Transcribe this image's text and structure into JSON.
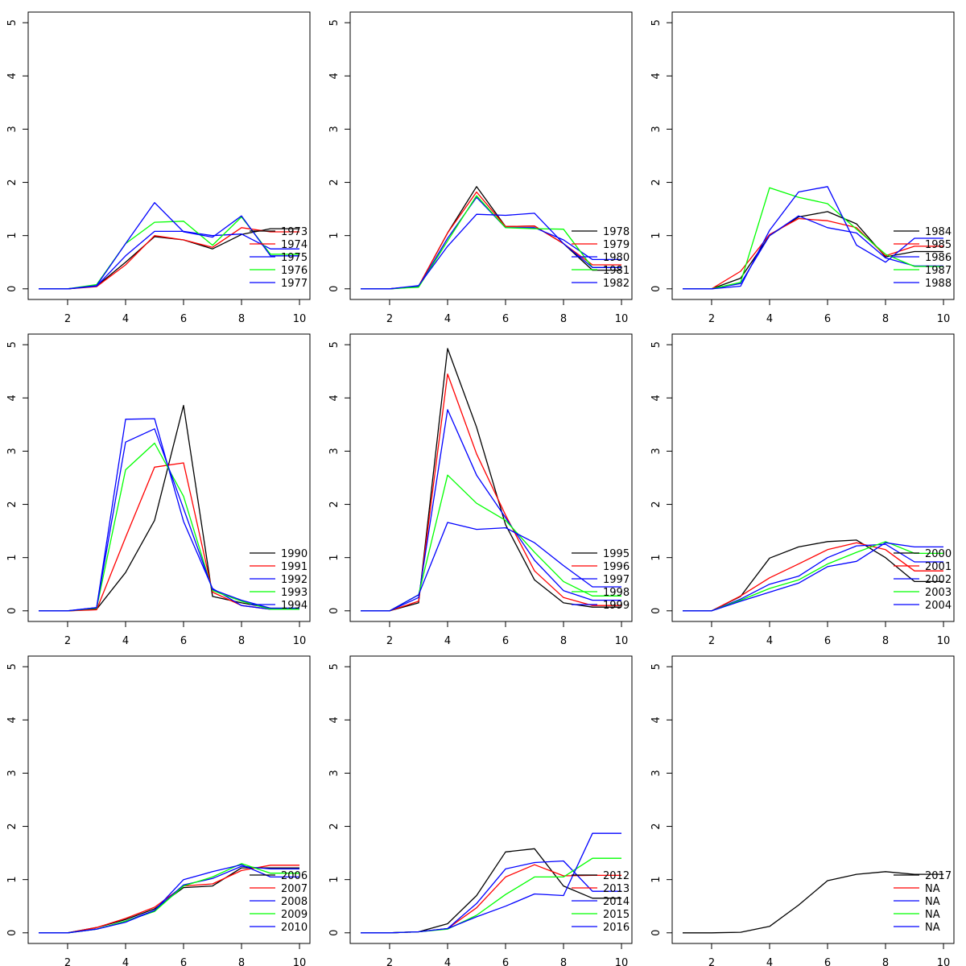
{
  "chart_data": [
    {
      "type": "line",
      "xlim": [
        1,
        10
      ],
      "ylim": [
        0,
        5
      ],
      "xticks": [
        2,
        4,
        6,
        8,
        10
      ],
      "yticks": [
        0,
        1,
        2,
        3,
        4,
        5
      ],
      "legend_position": "bottom-right",
      "series": [
        {
          "name": "1973",
          "color": "#000000",
          "values": [
            0,
            0,
            0.05,
            0.5,
            0.98,
            0.92,
            0.75,
            1.02,
            1.13,
            1.13
          ]
        },
        {
          "name": "1974",
          "color": "#ff0000",
          "values": [
            0,
            0,
            0.04,
            0.45,
            1.0,
            0.92,
            0.78,
            1.15,
            1.07,
            1.07
          ]
        },
        {
          "name": "1975",
          "color": "#0000ff",
          "values": [
            0,
            0,
            0.05,
            0.62,
            1.08,
            1.08,
            1.0,
            1.03,
            0.75,
            0.75
          ]
        },
        {
          "name": "1976",
          "color": "#00ff00",
          "values": [
            0,
            0,
            0.08,
            0.85,
            1.25,
            1.27,
            0.82,
            1.35,
            0.65,
            0.65
          ]
        },
        {
          "name": "1977",
          "color": "#0000ff",
          "values": [
            0,
            0,
            0.06,
            0.85,
            1.62,
            1.07,
            0.97,
            1.37,
            0.62,
            0.62
          ]
        }
      ]
    },
    {
      "type": "line",
      "xlim": [
        1,
        10
      ],
      "ylim": [
        0,
        5
      ],
      "xticks": [
        2,
        4,
        6,
        8,
        10
      ],
      "yticks": [
        0,
        1,
        2,
        3,
        4,
        5
      ],
      "legend_position": "bottom-right",
      "series": [
        {
          "name": "1978",
          "color": "#000000",
          "values": [
            0,
            0,
            0.05,
            1.05,
            1.92,
            1.17,
            1.18,
            0.85,
            0.35,
            0.35
          ]
        },
        {
          "name": "1979",
          "color": "#ff0000",
          "values": [
            0,
            0,
            0.05,
            1.05,
            1.82,
            1.17,
            1.18,
            0.85,
            0.45,
            0.45
          ]
        },
        {
          "name": "1980",
          "color": "#0000ff",
          "values": [
            0,
            0,
            0.04,
            0.95,
            1.72,
            1.15,
            1.15,
            0.92,
            0.55,
            0.55
          ]
        },
        {
          "name": "1981",
          "color": "#00ff00",
          "values": [
            0,
            0,
            0.03,
            0.9,
            1.75,
            1.15,
            1.13,
            1.12,
            0.4,
            0.4
          ]
        },
        {
          "name": "1982",
          "color": "#0000ff",
          "values": [
            0,
            0,
            0.06,
            0.8,
            1.4,
            1.38,
            1.42,
            0.85,
            0.4,
            0.4
          ]
        }
      ]
    },
    {
      "type": "line",
      "xlim": [
        1,
        10
      ],
      "ylim": [
        0,
        5
      ],
      "xticks": [
        2,
        4,
        6,
        8,
        10
      ],
      "yticks": [
        0,
        1,
        2,
        3,
        4,
        5
      ],
      "legend_position": "bottom-right",
      "series": [
        {
          "name": "1984",
          "color": "#000000",
          "values": [
            0,
            0,
            0.2,
            1.0,
            1.35,
            1.45,
            1.22,
            0.6,
            0.7,
            0.7
          ]
        },
        {
          "name": "1985",
          "color": "#ff0000",
          "values": [
            0,
            0,
            0.33,
            1.02,
            1.32,
            1.28,
            1.15,
            0.62,
            0.8,
            0.8
          ]
        },
        {
          "name": "1986",
          "color": "#0000ff",
          "values": [
            0,
            0,
            0.1,
            1.0,
            1.37,
            1.15,
            1.05,
            0.58,
            0.43,
            0.43
          ]
        },
        {
          "name": "1987",
          "color": "#00ff00",
          "values": [
            0,
            0,
            0.12,
            1.9,
            1.72,
            1.6,
            1.12,
            0.65,
            0.42,
            0.42
          ]
        },
        {
          "name": "1988",
          "color": "#0000ff",
          "values": [
            0,
            0,
            0.05,
            1.1,
            1.82,
            1.92,
            0.82,
            0.5,
            0.95,
            0.95
          ]
        }
      ]
    },
    {
      "type": "line",
      "xlim": [
        1,
        10
      ],
      "ylim": [
        0,
        5
      ],
      "xticks": [
        2,
        4,
        6,
        8,
        10
      ],
      "yticks": [
        0,
        1,
        2,
        3,
        4,
        5
      ],
      "legend_position": "bottom-right",
      "series": [
        {
          "name": "1990",
          "color": "#000000",
          "values": [
            0,
            0,
            0.03,
            0.72,
            1.7,
            3.86,
            0.27,
            0.15,
            0.05,
            0.05
          ]
        },
        {
          "name": "1991",
          "color": "#ff0000",
          "values": [
            0,
            0,
            0.02,
            1.38,
            2.7,
            2.78,
            0.35,
            0.1,
            0.03,
            0.03
          ]
        },
        {
          "name": "1992",
          "color": "#0000ff",
          "values": [
            0,
            0,
            0.06,
            3.6,
            3.61,
            1.68,
            0.42,
            0.1,
            0.03,
            0.03
          ]
        },
        {
          "name": "1993",
          "color": "#00ff00",
          "values": [
            0,
            0,
            0.05,
            2.65,
            3.15,
            2.15,
            0.38,
            0.18,
            0.03,
            0.03
          ]
        },
        {
          "name": "1994",
          "color": "#0000ff",
          "values": [
            0,
            0,
            0.06,
            3.17,
            3.42,
            1.92,
            0.4,
            0.2,
            0.05,
            0.05
          ]
        }
      ]
    },
    {
      "type": "line",
      "xlim": [
        1,
        10
      ],
      "ylim": [
        0,
        5
      ],
      "xticks": [
        2,
        4,
        6,
        8,
        10
      ],
      "yticks": [
        0,
        1,
        2,
        3,
        4,
        5
      ],
      "legend_position": "bottom-right",
      "series": [
        {
          "name": "1995",
          "color": "#000000",
          "values": [
            0,
            0,
            0.15,
            4.93,
            3.45,
            1.62,
            0.58,
            0.15,
            0.07,
            0.07
          ]
        },
        {
          "name": "1996",
          "color": "#ff0000",
          "values": [
            0,
            0,
            0.18,
            4.45,
            2.95,
            1.8,
            0.75,
            0.25,
            0.1,
            0.1
          ]
        },
        {
          "name": "1997",
          "color": "#0000ff",
          "values": [
            0,
            0,
            0.25,
            3.78,
            2.55,
            1.75,
            0.95,
            0.38,
            0.2,
            0.2
          ]
        },
        {
          "name": "1998",
          "color": "#00ff00",
          "values": [
            0,
            0,
            0.3,
            2.55,
            2.02,
            1.7,
            1.1,
            0.55,
            0.28,
            0.28
          ]
        },
        {
          "name": "1999",
          "color": "#0000ff",
          "values": [
            0,
            0,
            0.3,
            1.66,
            1.53,
            1.56,
            1.28,
            0.85,
            0.45,
            0.45
          ]
        }
      ]
    },
    {
      "type": "line",
      "xlim": [
        1,
        10
      ],
      "ylim": [
        0,
        5
      ],
      "xticks": [
        2,
        4,
        6,
        8,
        10
      ],
      "yticks": [
        0,
        1,
        2,
        3,
        4,
        5
      ],
      "legend_position": "bottom-right",
      "series": [
        {
          "name": "2000",
          "color": "#000000",
          "values": [
            0,
            0,
            0.27,
            0.99,
            1.2,
            1.3,
            1.33,
            1.0,
            0.55,
            0.55
          ]
        },
        {
          "name": "2001",
          "color": "#ff0000",
          "values": [
            0,
            0,
            0.28,
            0.62,
            0.88,
            1.15,
            1.28,
            1.15,
            0.75,
            0.75
          ]
        },
        {
          "name": "2002",
          "color": "#0000ff",
          "values": [
            0,
            0,
            0.22,
            0.5,
            0.65,
            1.0,
            1.22,
            1.25,
            0.92,
            0.92
          ]
        },
        {
          "name": "2003",
          "color": "#00ff00",
          "values": [
            0,
            0,
            0.2,
            0.42,
            0.58,
            0.88,
            1.1,
            1.3,
            1.08,
            1.08
          ]
        },
        {
          "name": "2004",
          "color": "#0000ff",
          "values": [
            0,
            0,
            0.18,
            0.35,
            0.52,
            0.83,
            0.93,
            1.28,
            1.2,
            1.2
          ]
        }
      ]
    },
    {
      "type": "line",
      "xlim": [
        1,
        10
      ],
      "ylim": [
        0,
        5
      ],
      "xticks": [
        2,
        4,
        6,
        8,
        10
      ],
      "yticks": [
        0,
        1,
        2,
        3,
        4,
        5
      ],
      "legend_position": "bottom-right",
      "series": [
        {
          "name": "2006",
          "color": "#000000",
          "values": [
            0,
            0,
            0.1,
            0.25,
            0.45,
            0.85,
            0.88,
            1.22,
            1.22,
            1.22
          ]
        },
        {
          "name": "2007",
          "color": "#ff0000",
          "values": [
            0,
            0,
            0.1,
            0.27,
            0.48,
            0.88,
            0.92,
            1.17,
            1.27,
            1.27
          ]
        },
        {
          "name": "2008",
          "color": "#0000ff",
          "values": [
            0,
            0,
            0.07,
            0.22,
            0.42,
            0.9,
            1.02,
            1.25,
            1.2,
            1.2
          ]
        },
        {
          "name": "2009",
          "color": "#00ff00",
          "values": [
            0,
            0,
            0.07,
            0.22,
            0.4,
            0.88,
            1.05,
            1.3,
            1.12,
            1.12
          ]
        },
        {
          "name": "2010",
          "color": "#0000ff",
          "values": [
            0,
            0,
            0.07,
            0.2,
            0.42,
            1.0,
            1.15,
            1.28,
            1.05,
            1.05
          ]
        }
      ]
    },
    {
      "type": "line",
      "xlim": [
        1,
        10
      ],
      "ylim": [
        0,
        5
      ],
      "xticks": [
        2,
        4,
        6,
        8,
        10
      ],
      "yticks": [
        0,
        1,
        2,
        3,
        4,
        5
      ],
      "legend_position": "bottom-right",
      "series": [
        {
          "name": "2012",
          "color": "#000000",
          "values": [
            0,
            0,
            0.02,
            0.17,
            0.7,
            1.52,
            1.58,
            0.88,
            0.65,
            0.65
          ]
        },
        {
          "name": "2013",
          "color": "#ff0000",
          "values": [
            0,
            0,
            0.02,
            0.08,
            0.47,
            1.05,
            1.28,
            1.07,
            1.08,
            1.08
          ]
        },
        {
          "name": "2014",
          "color": "#0000ff",
          "values": [
            0,
            0,
            0.02,
            0.08,
            0.55,
            1.2,
            1.32,
            1.35,
            0.78,
            0.78
          ]
        },
        {
          "name": "2015",
          "color": "#00ff00",
          "values": [
            0,
            0,
            0.02,
            0.07,
            0.33,
            0.72,
            1.05,
            1.05,
            1.4,
            1.4
          ]
        },
        {
          "name": "2016",
          "color": "#0000ff",
          "values": [
            0,
            0,
            0.02,
            0.08,
            0.3,
            0.5,
            0.73,
            0.7,
            1.87,
            1.87
          ]
        }
      ]
    },
    {
      "type": "line",
      "xlim": [
        1,
        10
      ],
      "ylim": [
        0,
        5
      ],
      "xticks": [
        2,
        4,
        6,
        8,
        10
      ],
      "yticks": [
        0,
        1,
        2,
        3,
        4,
        5
      ],
      "legend_position": "bottom-right",
      "series": [
        {
          "name": "2017",
          "color": "#000000",
          "values": [
            0,
            0,
            0.01,
            0.12,
            0.52,
            0.98,
            1.1,
            1.15,
            1.1,
            1.1
          ]
        },
        {
          "name": "NA",
          "color": "#ff0000",
          "values": []
        },
        {
          "name": "NA",
          "color": "#0000ff",
          "values": []
        },
        {
          "name": "NA",
          "color": "#00ff00",
          "values": []
        },
        {
          "name": "NA",
          "color": "#0000ff",
          "values": []
        }
      ]
    }
  ]
}
